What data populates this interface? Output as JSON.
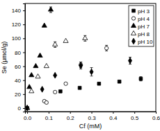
{
  "chart_data": {
    "type": "scatter",
    "x_label": "Cf (mM)",
    "y_label": "Se (μmol/g)",
    "xlim": [
      -0.01,
      0.6
    ],
    "ylim": [
      -5,
      150
    ],
    "xticks": [
      {
        "value": 0,
        "label": "0.0"
      },
      0.1,
      0.2,
      0.3,
      0.4,
      0.5,
      0.6
    ],
    "yticks": [
      0,
      20,
      40,
      60,
      80,
      100,
      120,
      140
    ],
    "legend": "upper right",
    "series": [
      {
        "name": "pH 3",
        "color": "#000000",
        "marker": "square",
        "x": [
          0.0,
          0.155,
          0.245,
          0.335,
          0.43,
          0.53
        ],
        "values": [
          0,
          24,
          29,
          35,
          38,
          42
        ],
        "errors": [
          null,
          null,
          null,
          null,
          null,
          3
        ]
      },
      {
        "name": "pH 4",
        "color": "#000000",
        "marker": "circle-open",
        "x": [
          0.0,
          0.08,
          0.09,
          0.13,
          0.18,
          0.25,
          0.37
        ],
        "values": [
          0,
          10,
          8,
          23,
          35,
          62,
          86
        ],
        "errors": [
          null,
          null,
          null,
          null,
          null,
          4,
          4
        ]
      },
      {
        "name": "pH 7",
        "color": "#000000",
        "marker": "triangle",
        "x": [
          0.0,
          0.01,
          0.02,
          0.04,
          0.06,
          0.08,
          0.11
        ],
        "values": [
          0,
          30,
          47,
          60,
          75,
          118,
          141
        ],
        "errors": [
          null,
          null,
          null,
          null,
          null,
          null,
          4
        ]
      },
      {
        "name": "pH 8",
        "color": "#000000",
        "marker": "triangle-open",
        "x": [
          0.0,
          0.02,
          0.05,
          0.09,
          0.13,
          0.18,
          0.27
        ],
        "values": [
          0,
          24,
          45,
          60,
          91,
          96,
          100
        ],
        "errors": [
          null,
          null,
          null,
          null,
          4,
          null,
          4
        ]
      },
      {
        "name": "pH 10",
        "color": "#000000",
        "marker": "diamond",
        "x": [
          0.0,
          0.07,
          0.13,
          0.25,
          0.3,
          0.48
        ],
        "values": [
          0,
          27,
          47,
          61,
          52,
          68
        ],
        "errors": [
          null,
          null,
          null,
          5,
          6,
          5
        ]
      }
    ]
  }
}
